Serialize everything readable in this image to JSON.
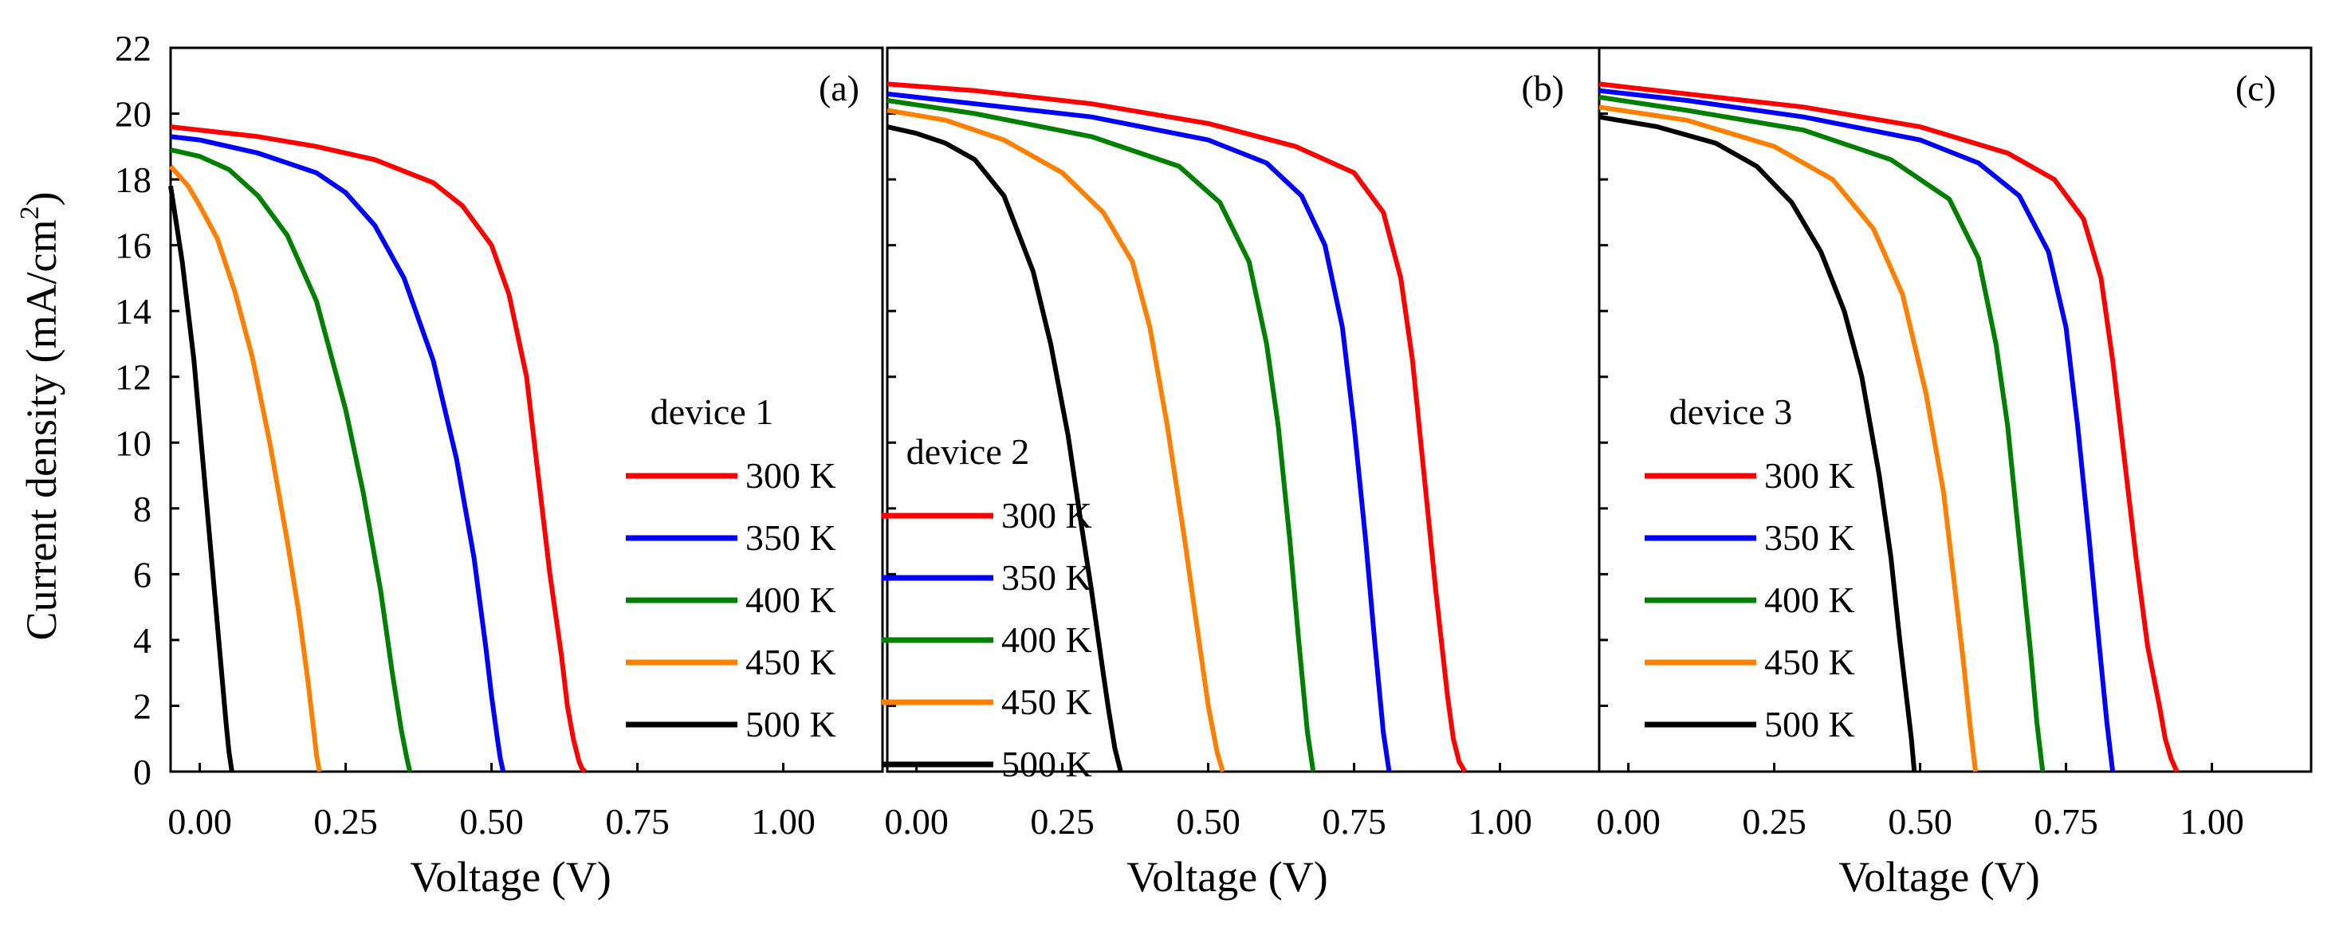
{
  "chart_data": {
    "type": "line",
    "ylabel": "Current density (mA/cm",
    "ylabel_sup": "2",
    "ylabel_tail": ")",
    "ylim": [
      0,
      22
    ],
    "yticks": [
      "0",
      "2",
      "4",
      "6",
      "8",
      "10",
      "12",
      "14",
      "16",
      "18",
      "20",
      "22"
    ],
    "xlabel": "Voltage (V)",
    "xlim": [
      -0.05,
      1.17
    ],
    "xticks": [
      "0.00",
      "0.25",
      "0.50",
      "0.75",
      "1.00"
    ],
    "panels": [
      {
        "label": "(a)",
        "legend_title": "device 1",
        "series": [
          {
            "name": "300 K",
            "color": "#ff0000",
            "x": [
              -0.05,
              0.0,
              0.1,
              0.2,
              0.3,
              0.4,
              0.45,
              0.5,
              0.53,
              0.56,
              0.58,
              0.6,
              0.62,
              0.63,
              0.64,
              0.65,
              0.655,
              0.66
            ],
            "y": [
              19.6,
              19.5,
              19.3,
              19.0,
              18.6,
              17.9,
              17.2,
              16.0,
              14.5,
              12.0,
              9.0,
              6.0,
              3.5,
              2.0,
              1.0,
              0.3,
              0.1,
              0.0
            ]
          },
          {
            "name": "350 K",
            "color": "#0000ff",
            "x": [
              -0.05,
              0.0,
              0.1,
              0.2,
              0.25,
              0.3,
              0.35,
              0.4,
              0.44,
              0.47,
              0.49,
              0.5,
              0.51,
              0.515,
              0.52
            ],
            "y": [
              19.3,
              19.2,
              18.8,
              18.2,
              17.6,
              16.6,
              15.0,
              12.5,
              9.5,
              6.5,
              3.8,
              2.3,
              1.0,
              0.4,
              0.0
            ]
          },
          {
            "name": "400 K",
            "color": "#008000",
            "x": [
              -0.05,
              0.0,
              0.05,
              0.1,
              0.15,
              0.2,
              0.25,
              0.28,
              0.31,
              0.33,
              0.345,
              0.355,
              0.36
            ],
            "y": [
              18.9,
              18.7,
              18.3,
              17.5,
              16.3,
              14.3,
              11.0,
              8.5,
              5.5,
              3.0,
              1.3,
              0.4,
              0.0
            ]
          },
          {
            "name": "450 K",
            "color": "#ff8000",
            "x": [
              -0.05,
              -0.02,
              0.0,
              0.03,
              0.06,
              0.09,
              0.12,
              0.15,
              0.17,
              0.185,
              0.195,
              0.2,
              0.205
            ],
            "y": [
              18.4,
              17.8,
              17.2,
              16.2,
              14.6,
              12.6,
              10.0,
              7.0,
              4.8,
              2.8,
              1.3,
              0.5,
              0.0
            ]
          },
          {
            "name": "500 K",
            "color": "#000000",
            "x": [
              -0.05,
              -0.03,
              -0.01,
              0.01,
              0.025,
              0.035,
              0.045,
              0.05,
              0.055
            ],
            "y": [
              17.8,
              15.5,
              12.5,
              8.5,
              5.5,
              3.5,
              1.5,
              0.6,
              0.0
            ]
          }
        ]
      },
      {
        "label": "(b)",
        "legend_title": "device 2",
        "series": [
          {
            "name": "300 K",
            "color": "#ff0000",
            "x": [
              -0.05,
              0.1,
              0.3,
              0.5,
              0.65,
              0.75,
              0.8,
              0.83,
              0.85,
              0.87,
              0.89,
              0.91,
              0.92,
              0.93,
              0.94
            ],
            "y": [
              20.9,
              20.7,
              20.3,
              19.7,
              19.0,
              18.2,
              17.0,
              15.0,
              12.5,
              9.0,
              5.5,
              2.3,
              1.0,
              0.3,
              0.0
            ]
          },
          {
            "name": "350 K",
            "color": "#0000ff",
            "x": [
              -0.05,
              0.1,
              0.3,
              0.5,
              0.6,
              0.66,
              0.7,
              0.73,
              0.75,
              0.77,
              0.785,
              0.8,
              0.81
            ],
            "y": [
              20.6,
              20.3,
              19.9,
              19.2,
              18.5,
              17.5,
              16.0,
              13.5,
              10.5,
              7.0,
              4.0,
              1.2,
              0.0
            ]
          },
          {
            "name": "400 K",
            "color": "#008000",
            "x": [
              -0.05,
              0.1,
              0.3,
              0.45,
              0.52,
              0.57,
              0.6,
              0.62,
              0.64,
              0.655,
              0.67,
              0.68
            ],
            "y": [
              20.4,
              20.0,
              19.3,
              18.4,
              17.3,
              15.5,
              13.0,
              10.5,
              7.0,
              4.0,
              1.2,
              0.0
            ]
          },
          {
            "name": "450 K",
            "color": "#ff8000",
            "x": [
              -0.05,
              0.05,
              0.15,
              0.25,
              0.32,
              0.37,
              0.4,
              0.43,
              0.46,
              0.48,
              0.5,
              0.515,
              0.525
            ],
            "y": [
              20.1,
              19.8,
              19.2,
              18.2,
              17.0,
              15.5,
              13.5,
              10.5,
              7.0,
              4.5,
              2.0,
              0.6,
              0.0
            ]
          },
          {
            "name": "500 K",
            "color": "#000000",
            "x": [
              -0.05,
              0.0,
              0.05,
              0.1,
              0.15,
              0.2,
              0.23,
              0.26,
              0.28,
              0.3,
              0.32,
              0.33,
              0.34,
              0.35
            ],
            "y": [
              19.6,
              19.4,
              19.1,
              18.6,
              17.5,
              15.2,
              13.0,
              10.2,
              7.8,
              5.5,
              3.0,
              1.8,
              0.7,
              0.0
            ]
          }
        ]
      },
      {
        "label": "(c)",
        "legend_title": "device 3",
        "series": [
          {
            "name": "300 K",
            "color": "#ff0000",
            "x": [
              -0.05,
              0.1,
              0.3,
              0.5,
              0.65,
              0.73,
              0.78,
              0.81,
              0.83,
              0.85,
              0.87,
              0.89,
              0.91,
              0.92,
              0.93,
              0.94
            ],
            "y": [
              20.9,
              20.6,
              20.2,
              19.6,
              18.8,
              18.0,
              16.8,
              15.0,
              12.5,
              9.5,
              6.5,
              3.8,
              2.0,
              1.0,
              0.4,
              0.0
            ]
          },
          {
            "name": "350 K",
            "color": "#0000ff",
            "x": [
              -0.05,
              0.1,
              0.3,
              0.5,
              0.6,
              0.67,
              0.72,
              0.75,
              0.77,
              0.79,
              0.805,
              0.82,
              0.83
            ],
            "y": [
              20.7,
              20.4,
              19.9,
              19.2,
              18.5,
              17.5,
              15.8,
              13.5,
              10.5,
              7.0,
              4.2,
              1.5,
              0.0
            ]
          },
          {
            "name": "400 K",
            "color": "#008000",
            "x": [
              -0.05,
              0.1,
              0.3,
              0.45,
              0.55,
              0.6,
              0.63,
              0.65,
              0.67,
              0.69,
              0.7,
              0.71
            ],
            "y": [
              20.5,
              20.1,
              19.5,
              18.6,
              17.4,
              15.6,
              13.0,
              10.5,
              7.0,
              3.5,
              1.5,
              0.0
            ]
          },
          {
            "name": "450 K",
            "color": "#ff8000",
            "x": [
              -0.05,
              0.1,
              0.25,
              0.35,
              0.42,
              0.47,
              0.51,
              0.54,
              0.56,
              0.575,
              0.585,
              0.595
            ],
            "y": [
              20.2,
              19.8,
              19.0,
              18.0,
              16.5,
              14.5,
              11.5,
              8.5,
              5.5,
              3.2,
              1.5,
              0.0
            ]
          },
          {
            "name": "500 K",
            "color": "#000000",
            "x": [
              -0.05,
              0.05,
              0.15,
              0.22,
              0.28,
              0.33,
              0.37,
              0.4,
              0.43,
              0.45,
              0.465,
              0.475,
              0.485,
              0.49
            ],
            "y": [
              19.9,
              19.6,
              19.1,
              18.4,
              17.3,
              15.8,
              14.0,
              12.0,
              9.0,
              6.5,
              4.0,
              2.5,
              1.0,
              0.0
            ]
          }
        ]
      }
    ]
  }
}
